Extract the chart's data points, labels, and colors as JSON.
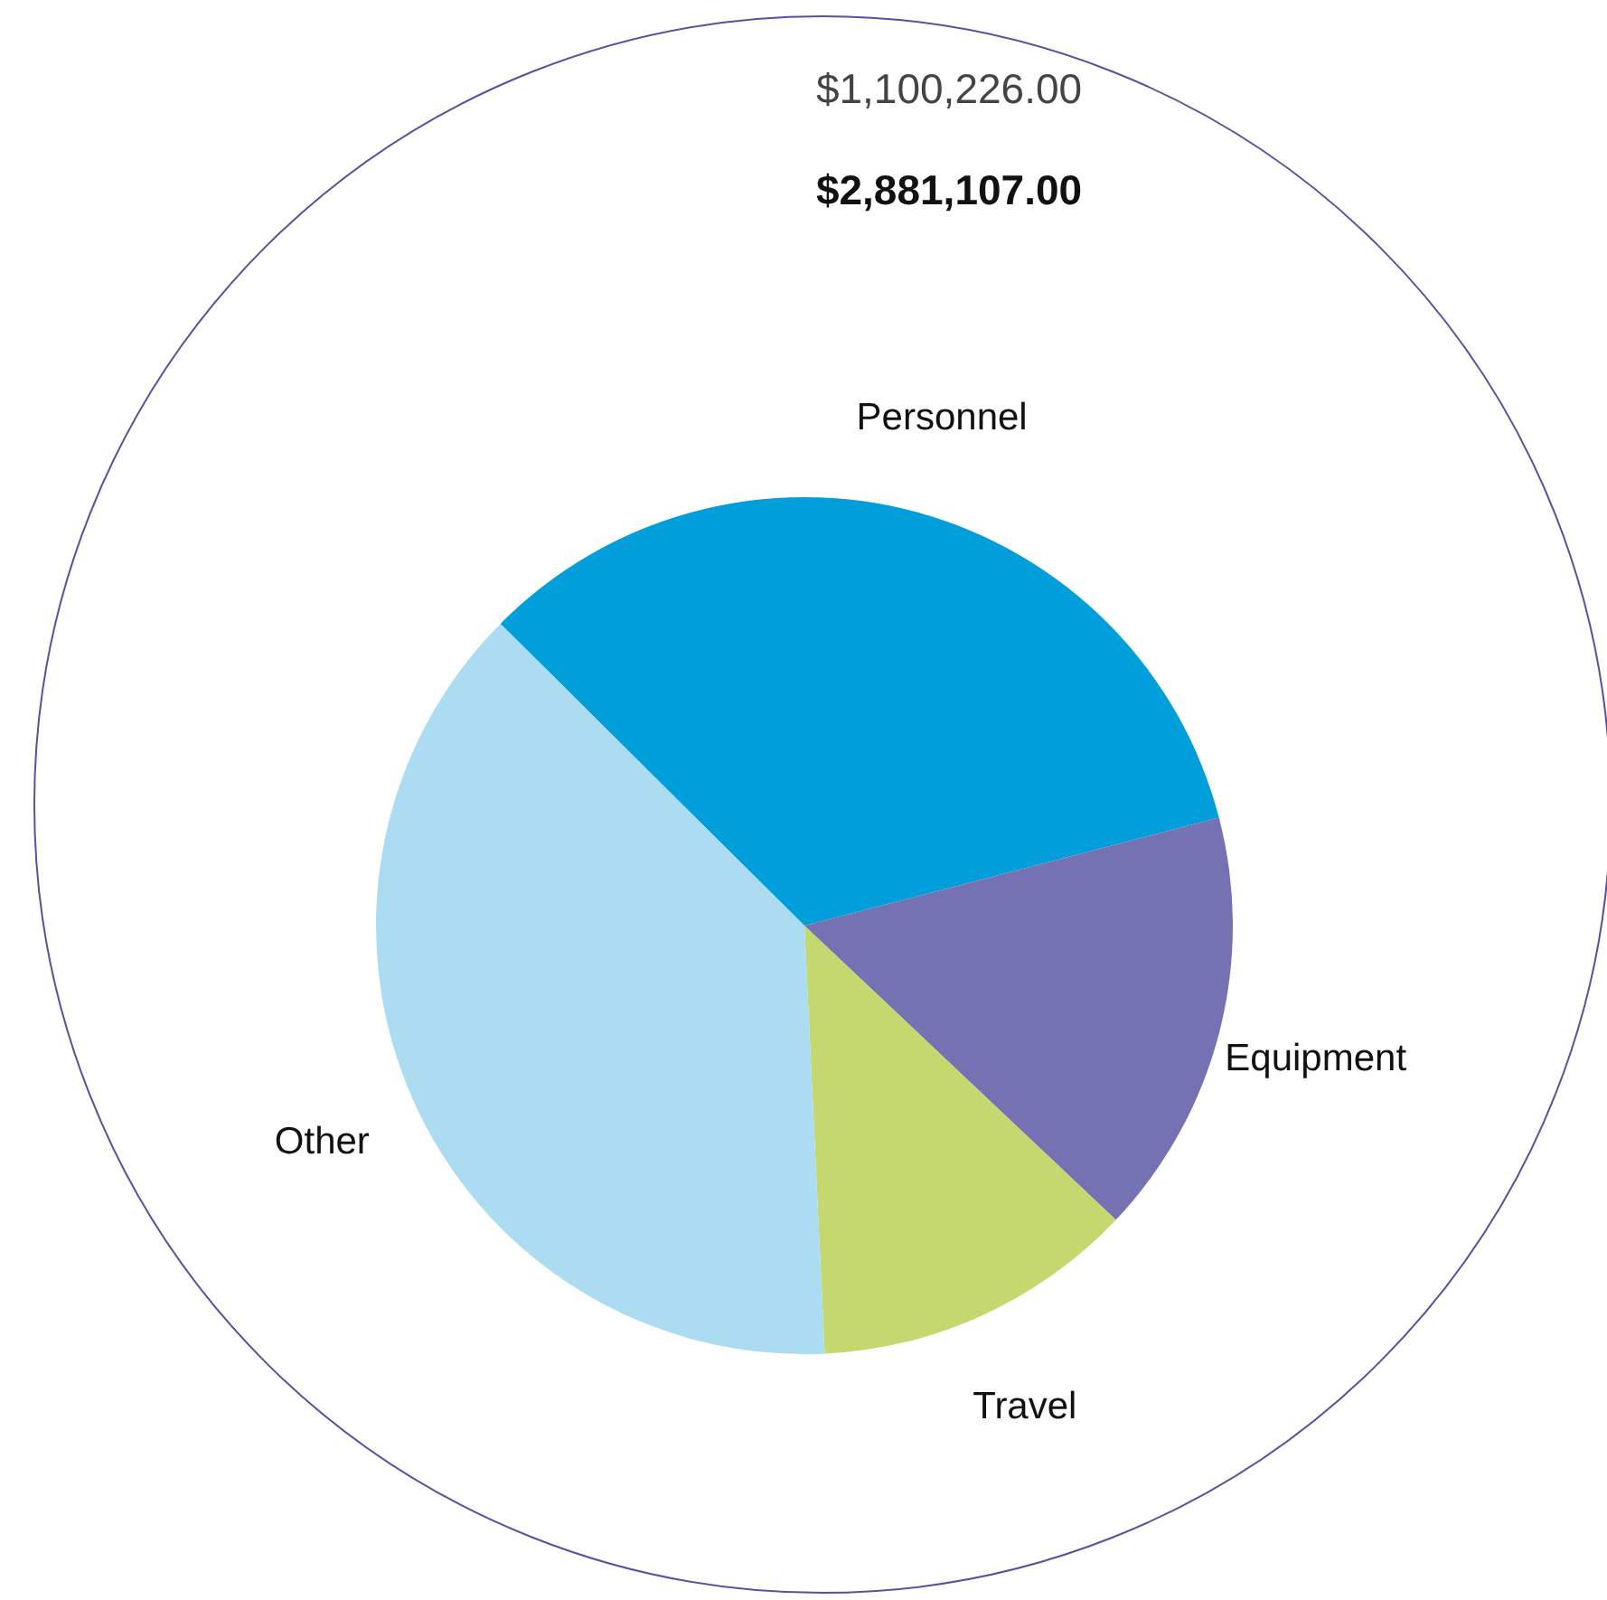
{
  "chart_data": {
    "type": "pie",
    "categories": [
      "Personnel",
      "Equipment",
      "Travel",
      "Other"
    ],
    "values": [
      33.5,
      16.1,
      12.2,
      38.2
    ],
    "colors": [
      "#009fdb",
      "#7472b3",
      "#c5d86f",
      "#abdcf2"
    ],
    "annotations": [
      "$1,100,226.00",
      "$2,881,107.00"
    ],
    "legend": false
  }
}
